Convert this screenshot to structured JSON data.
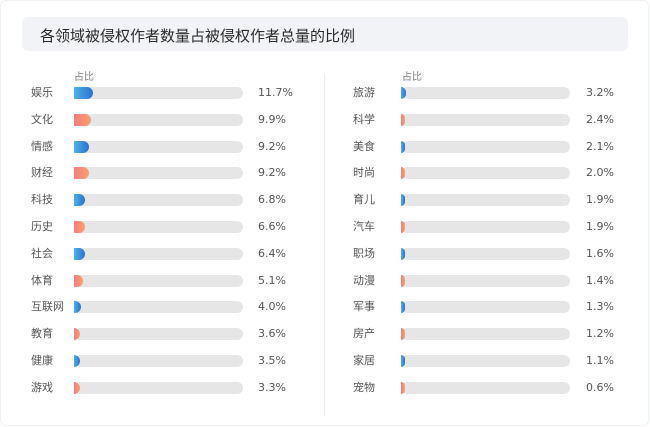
{
  "title": "各领域被侵权作者数量占被侵权作者总量的比例",
  "chart_data": {
    "type": "bar",
    "orientation": "horizontal",
    "column_header": "占比",
    "unit": "%",
    "xlim": [
      0,
      100
    ],
    "colors": {
      "blue": "#2f6fd1",
      "orange": "#f7a26b",
      "track": "#e6e6e6"
    },
    "left": [
      {
        "label": "娱乐",
        "value": 11.7,
        "text": "11.7%",
        "color": "blue"
      },
      {
        "label": "文化",
        "value": 9.9,
        "text": "9.9%",
        "color": "orange"
      },
      {
        "label": "情感",
        "value": 9.2,
        "text": "9.2%",
        "color": "blue"
      },
      {
        "label": "财经",
        "value": 9.2,
        "text": "9.2%",
        "color": "orange"
      },
      {
        "label": "科技",
        "value": 6.8,
        "text": "6.8%",
        "color": "blue"
      },
      {
        "label": "历史",
        "value": 6.6,
        "text": "6.6%",
        "color": "orange"
      },
      {
        "label": "社会",
        "value": 6.4,
        "text": "6.4%",
        "color": "blue"
      },
      {
        "label": "体育",
        "value": 5.1,
        "text": "5.1%",
        "color": "orange"
      },
      {
        "label": "互联网",
        "value": 4.0,
        "text": "4.0%",
        "color": "blue"
      },
      {
        "label": "教育",
        "value": 3.6,
        "text": "3.6%",
        "color": "orange"
      },
      {
        "label": "健康",
        "value": 3.5,
        "text": "3.5%",
        "color": "blue"
      },
      {
        "label": "游戏",
        "value": 3.3,
        "text": "3.3%",
        "color": "orange"
      }
    ],
    "right": [
      {
        "label": "旅游",
        "value": 3.2,
        "text": "3.2%",
        "color": "blue"
      },
      {
        "label": "科学",
        "value": 2.4,
        "text": "2.4%",
        "color": "orange"
      },
      {
        "label": "美食",
        "value": 2.1,
        "text": "2.1%",
        "color": "blue"
      },
      {
        "label": "时尚",
        "value": 2.0,
        "text": "2.0%",
        "color": "orange"
      },
      {
        "label": "育儿",
        "value": 1.9,
        "text": "1.9%",
        "color": "blue"
      },
      {
        "label": "汽车",
        "value": 1.9,
        "text": "1.9%",
        "color": "orange"
      },
      {
        "label": "职场",
        "value": 1.6,
        "text": "1.6%",
        "color": "blue"
      },
      {
        "label": "动漫",
        "value": 1.4,
        "text": "1.4%",
        "color": "orange"
      },
      {
        "label": "军事",
        "value": 1.3,
        "text": "1.3%",
        "color": "blue"
      },
      {
        "label": "房产",
        "value": 1.2,
        "text": "1.2%",
        "color": "orange"
      },
      {
        "label": "家居",
        "value": 1.1,
        "text": "1.1%",
        "color": "blue"
      },
      {
        "label": "宠物",
        "value": 0.6,
        "text": "0.6%",
        "color": "orange"
      }
    ]
  }
}
